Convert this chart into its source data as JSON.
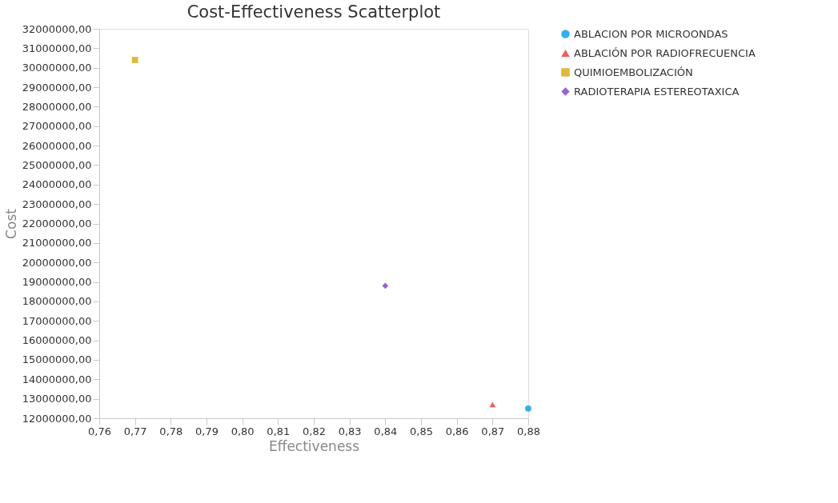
{
  "chart_data": {
    "type": "scatter",
    "title": "Cost-Effectiveness Scatterplot",
    "xlabel": "Effectiveness",
    "ylabel": "Cost",
    "series": [
      {
        "name": "ABLACION POR MICROONDAS",
        "color": "#33b0f0",
        "marker": "circle",
        "x": [
          0.88
        ],
        "values": [
          12500000
        ]
      },
      {
        "name": "ABLACIÓN POR RADIOFRECUENCIA",
        "color": "#f45b5b",
        "marker": "triangle",
        "x": [
          0.87
        ],
        "values": [
          12700000
        ]
      },
      {
        "name": "QUIMIOEMBOLIZACIÓN",
        "color": "#e0b83a",
        "marker": "square",
        "x": [
          0.77
        ],
        "values": [
          30400000
        ]
      },
      {
        "name": "RADIOTERAPIA ESTEREOTAXICA",
        "color": "#9b62d9",
        "marker": "diamond",
        "x": [
          0.84
        ],
        "values": [
          18800000
        ]
      }
    ],
    "xlim": [
      0.76,
      0.88
    ],
    "xticks": [
      {
        "value": 0.76,
        "label": "0,76"
      },
      {
        "value": 0.77,
        "label": "0,77"
      },
      {
        "value": 0.78,
        "label": "0,78"
      },
      {
        "value": 0.79,
        "label": "0,79"
      },
      {
        "value": 0.8,
        "label": "0,80"
      },
      {
        "value": 0.81,
        "label": "0,81"
      },
      {
        "value": 0.82,
        "label": "0,82"
      },
      {
        "value": 0.83,
        "label": "0,83"
      },
      {
        "value": 0.84,
        "label": "0,84"
      },
      {
        "value": 0.85,
        "label": "0,85"
      },
      {
        "value": 0.86,
        "label": "0,86"
      },
      {
        "value": 0.87,
        "label": "0,87"
      },
      {
        "value": 0.88,
        "label": "0,88"
      }
    ],
    "ylim": [
      12000000,
      32000000
    ],
    "yticks": [
      {
        "value": 12000000,
        "label": "12000000,00"
      },
      {
        "value": 13000000,
        "label": "13000000,00"
      },
      {
        "value": 14000000,
        "label": "14000000,00"
      },
      {
        "value": 15000000,
        "label": "15000000,00"
      },
      {
        "value": 16000000,
        "label": "16000000,00"
      },
      {
        "value": 17000000,
        "label": "17000000,00"
      },
      {
        "value": 18000000,
        "label": "18000000,00"
      },
      {
        "value": 19000000,
        "label": "19000000,00"
      },
      {
        "value": 20000000,
        "label": "20000000,00"
      },
      {
        "value": 21000000,
        "label": "21000000,00"
      },
      {
        "value": 22000000,
        "label": "22000000,00"
      },
      {
        "value": 23000000,
        "label": "23000000,00"
      },
      {
        "value": 24000000,
        "label": "24000000,00"
      },
      {
        "value": 25000000,
        "label": "25000000,00"
      },
      {
        "value": 26000000,
        "label": "26000000,00"
      },
      {
        "value": 27000000,
        "label": "27000000,00"
      },
      {
        "value": 28000000,
        "label": "28000000,00"
      },
      {
        "value": 29000000,
        "label": "29000000,00"
      },
      {
        "value": 30000000,
        "label": "30000000,00"
      },
      {
        "value": 31000000,
        "label": "31000000,00"
      },
      {
        "value": 32000000,
        "label": "32000000,00"
      }
    ],
    "grid": false,
    "legend": "top right"
  }
}
